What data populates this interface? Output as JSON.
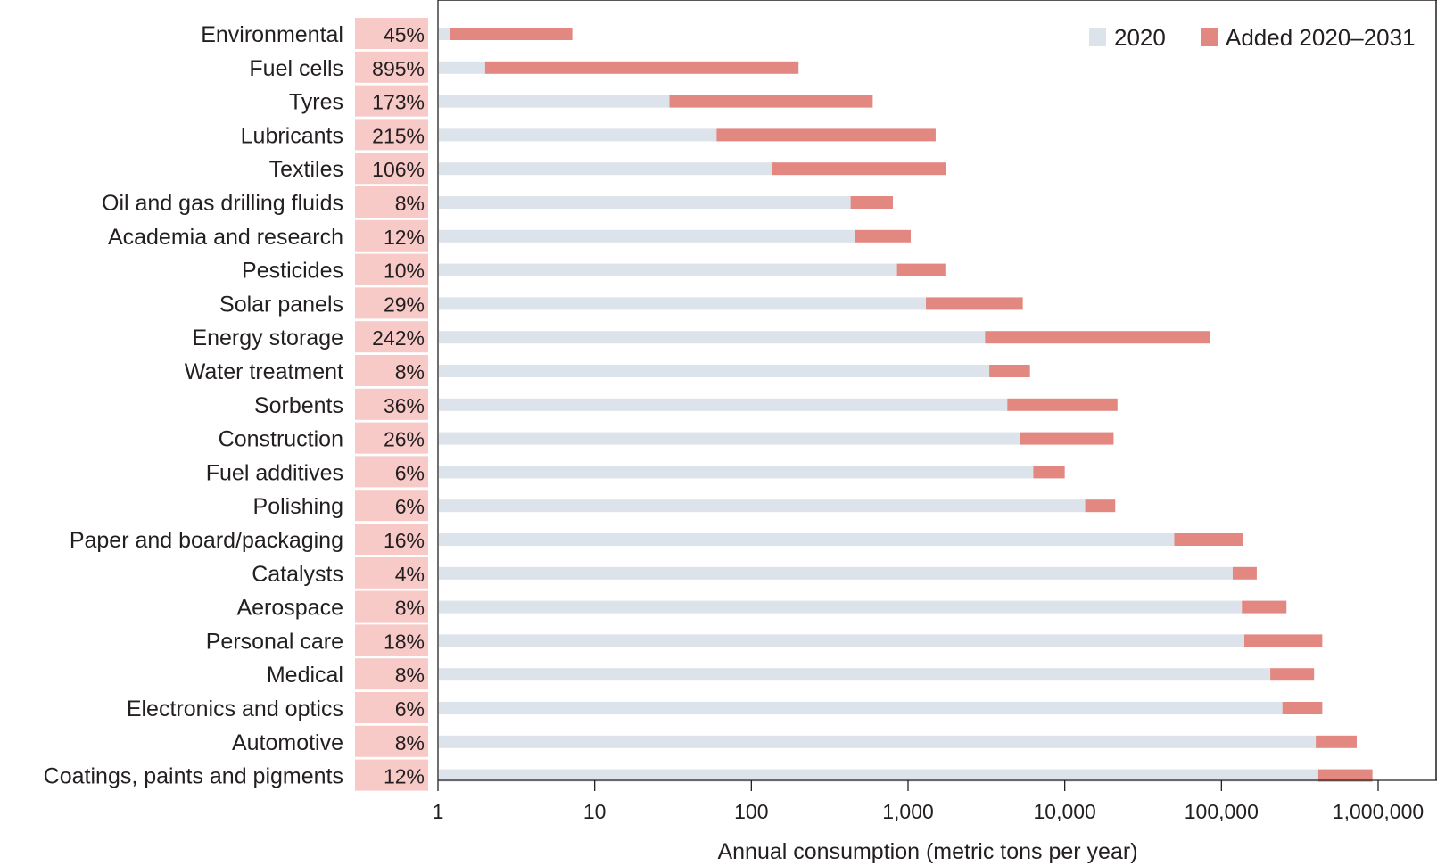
{
  "chart_data": {
    "type": "bar",
    "orientation": "horizontal",
    "stacked": true,
    "xscale": "log",
    "xlim": [
      1,
      1000000
    ],
    "xlabel": "Annual consumption (metric tons per year)",
    "xticks": [
      1,
      10,
      100,
      1000,
      10000,
      100000,
      1000000
    ],
    "xtick_labels": [
      "1",
      "10",
      "100",
      "1,000",
      "10,000",
      "100,000",
      "1,000,000"
    ],
    "legend": {
      "position": "top-right"
    },
    "colors": {
      "2020": "#dde3ea",
      "Added 2020–2031": "#e38781",
      "pct_box": "#f7c9c7"
    },
    "categories": [
      "Environmental",
      "Fuel cells",
      "Tyres",
      "Lubricants",
      "Textiles",
      "Oil and gas drilling fluids",
      "Academia and research",
      "Pesticides",
      "Solar panels",
      "Energy storage",
      "Water treatment",
      "Sorbents",
      "Construction",
      "Fuel additives",
      "Polishing",
      "Paper and board/packaging",
      "Catalysts",
      "Aerospace",
      "Personal care",
      "Medical",
      "Electronics and optics",
      "Automotive",
      "Coatings, paints and pigments"
    ],
    "growth_labels": [
      "45%",
      "895%",
      "173%",
      "215%",
      "106%",
      "8%",
      "12%",
      "10%",
      "29%",
      "242%",
      "8%",
      "36%",
      "26%",
      "6%",
      "6%",
      "16%",
      "4%",
      "8%",
      "18%",
      "8%",
      "6%",
      "8%",
      "12%"
    ],
    "series": [
      {
        "name": "2020",
        "values": [
          1.2,
          2,
          30,
          60,
          135,
          430,
          460,
          850,
          1300,
          3100,
          3300,
          4300,
          5200,
          6300,
          13500,
          50000,
          118000,
          135000,
          140000,
          205000,
          245000,
          400000,
          415000
        ]
      },
      {
        "name": "Added 2020–2031",
        "values": [
          6.0,
          198,
          565,
          1440,
          1605,
          370,
          580,
          880,
          4100,
          81900,
          2700,
          17400,
          15300,
          3700,
          7500,
          88000,
          50000,
          125000,
          300000,
          185000,
          195000,
          330000,
          505000
        ]
      }
    ]
  }
}
